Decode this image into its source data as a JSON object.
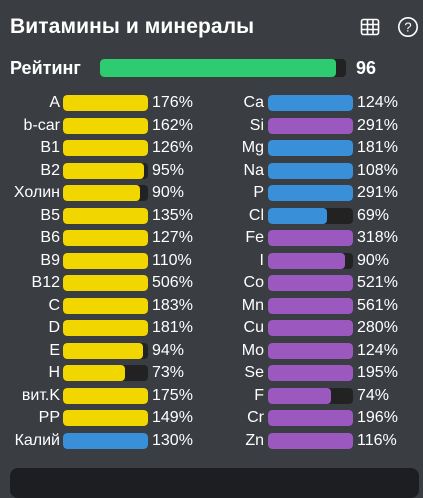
{
  "title": "Витамины и минералы",
  "icons": {
    "table": "table-grid-icon",
    "help": "question-circle-icon"
  },
  "rating": {
    "label": "Рейтинг",
    "value": "96",
    "level": 0.96,
    "color": "#2ecc71"
  },
  "colors": {
    "vitamin": "#f2d600",
    "mineral_blue": "#3a8fd9",
    "mineral_purple": "#9b59c0",
    "track": "#222222"
  },
  "left": [
    {
      "label": "A",
      "pct": "176%",
      "fill": 1.0,
      "color": "vitamin"
    },
    {
      "label": "b-car",
      "pct": "162%",
      "fill": 1.0,
      "color": "vitamin"
    },
    {
      "label": "B1",
      "pct": "126%",
      "fill": 1.0,
      "color": "vitamin"
    },
    {
      "label": "B2",
      "pct": "95%",
      "fill": 0.95,
      "color": "vitamin"
    },
    {
      "label": "Холин",
      "pct": "90%",
      "fill": 0.9,
      "color": "vitamin"
    },
    {
      "label": "B5",
      "pct": "135%",
      "fill": 1.0,
      "color": "vitamin"
    },
    {
      "label": "B6",
      "pct": "127%",
      "fill": 1.0,
      "color": "vitamin"
    },
    {
      "label": "B9",
      "pct": "110%",
      "fill": 1.0,
      "color": "vitamin"
    },
    {
      "label": "B12",
      "pct": "506%",
      "fill": 1.0,
      "color": "vitamin"
    },
    {
      "label": "C",
      "pct": "183%",
      "fill": 1.0,
      "color": "vitamin"
    },
    {
      "label": "D",
      "pct": "181%",
      "fill": 1.0,
      "color": "vitamin"
    },
    {
      "label": "E",
      "pct": "94%",
      "fill": 0.94,
      "color": "vitamin"
    },
    {
      "label": "H",
      "pct": "73%",
      "fill": 0.73,
      "color": "vitamin"
    },
    {
      "label": "вит.K",
      "pct": "175%",
      "fill": 1.0,
      "color": "vitamin"
    },
    {
      "label": "PP",
      "pct": "149%",
      "fill": 1.0,
      "color": "vitamin"
    },
    {
      "label": "Калий",
      "pct": "130%",
      "fill": 1.0,
      "color": "mineral_blue"
    }
  ],
  "right": [
    {
      "label": "Ca",
      "pct": "124%",
      "fill": 1.0,
      "color": "mineral_blue"
    },
    {
      "label": "Si",
      "pct": "291%",
      "fill": 1.0,
      "color": "mineral_purple"
    },
    {
      "label": "Mg",
      "pct": "181%",
      "fill": 1.0,
      "color": "mineral_blue"
    },
    {
      "label": "Na",
      "pct": "108%",
      "fill": 1.0,
      "color": "mineral_blue"
    },
    {
      "label": "P",
      "pct": "291%",
      "fill": 1.0,
      "color": "mineral_blue"
    },
    {
      "label": "Cl",
      "pct": "69%",
      "fill": 0.69,
      "color": "mineral_blue"
    },
    {
      "label": "Fe",
      "pct": "318%",
      "fill": 1.0,
      "color": "mineral_purple"
    },
    {
      "label": "I",
      "pct": "90%",
      "fill": 0.9,
      "color": "mineral_purple"
    },
    {
      "label": "Co",
      "pct": "521%",
      "fill": 1.0,
      "color": "mineral_purple"
    },
    {
      "label": "Mn",
      "pct": "561%",
      "fill": 1.0,
      "color": "mineral_purple"
    },
    {
      "label": "Cu",
      "pct": "280%",
      "fill": 1.0,
      "color": "mineral_purple"
    },
    {
      "label": "Mo",
      "pct": "124%",
      "fill": 1.0,
      "color": "mineral_purple"
    },
    {
      "label": "Se",
      "pct": "195%",
      "fill": 1.0,
      "color": "mineral_purple"
    },
    {
      "label": "F",
      "pct": "74%",
      "fill": 0.74,
      "color": "mineral_purple"
    },
    {
      "label": "Cr",
      "pct": "196%",
      "fill": 1.0,
      "color": "mineral_purple"
    },
    {
      "label": "Zn",
      "pct": "116%",
      "fill": 1.0,
      "color": "mineral_purple"
    }
  ]
}
